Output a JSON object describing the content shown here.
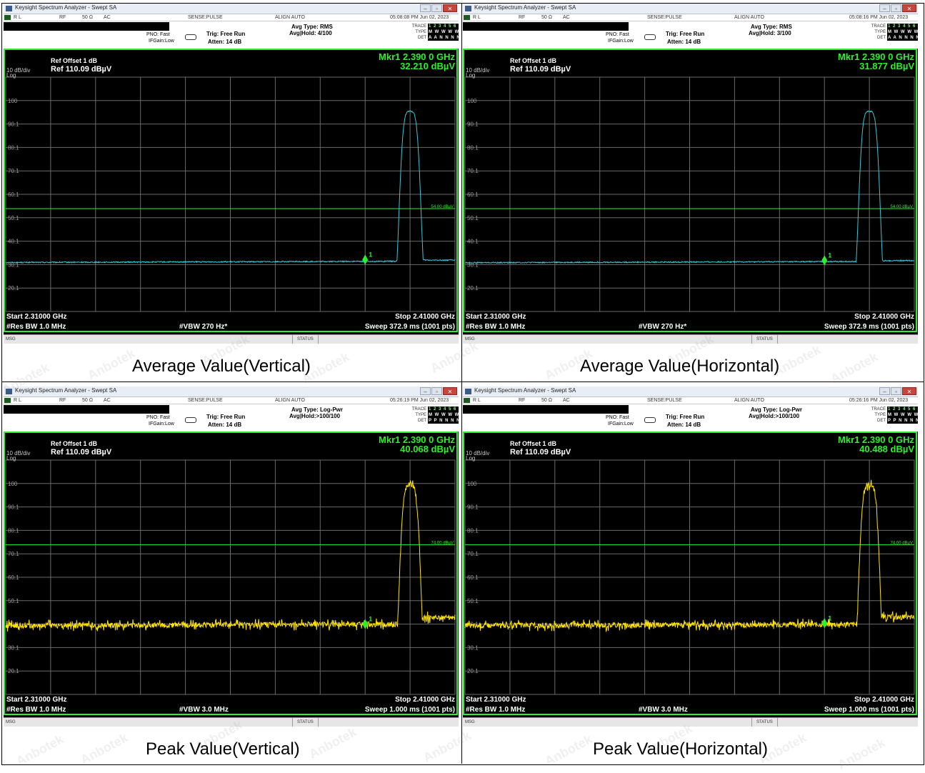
{
  "panels": [
    {
      "window_title": "Keysight Spectrum Analyzer - Swept SA",
      "rl": "R L",
      "rf": "RF",
      "impedance": "50 Ω",
      "coupling": "AC",
      "sense": "SENSE:PULSE",
      "align": "ALIGN AUTO",
      "datetime": "05:08:08 PM Jun 02, 2023",
      "pno": "PNO: Fast",
      "ifgain": "IFGain:Low",
      "trig": "Trig: Free Run",
      "atten": "Atten: 14 dB",
      "avg_type": "Avg Type: RMS",
      "avg_hold": "Avg|Hold: 4/100",
      "trace_label": "TRACE",
      "type_label": "TYPE",
      "det_label": "DET",
      "trace_vals": "1 2 3 4 5 6",
      "type_vals": "M W W W W W",
      "det_vals": "A A N N N N",
      "ref_offset": "Ref Offset 1 dB",
      "ref_level": "Ref 110.09 dBµV",
      "scale": "10 dB/div",
      "log": "Log",
      "marker_freq": "Mkr1 2.390 0 GHz",
      "marker_amp": "32.210 dBµV",
      "limit_label": "54.00 dBµV",
      "start": "Start 2.31000 GHz",
      "stop": "Stop 2.41000 GHz",
      "rbw": "#Res BW 1.0 MHz",
      "vbw": "#VBW 270 Hz*",
      "sweep": "Sweep  372.9 ms (1001 pts)",
      "msg": "MSG",
      "status": "STATUS",
      "caption": "Average Value(Vertical)"
    },
    {
      "window_title": "Keysight Spectrum Analyzer - Swept SA",
      "rl": "R L",
      "rf": "RF",
      "impedance": "50 Ω",
      "coupling": "AC",
      "sense": "SENSE:PULSE",
      "align": "ALIGN AUTO",
      "datetime": "05:08:16 PM Jun 02, 2023",
      "pno": "PNO: Fast",
      "ifgain": "IFGain:Low",
      "trig": "Trig: Free Run",
      "atten": "Atten: 14 dB",
      "avg_type": "Avg Type: RMS",
      "avg_hold": "Avg|Hold: 3/100",
      "trace_label": "TRACE",
      "type_label": "TYPE",
      "det_label": "DET",
      "trace_vals": "1 2 3 4 5 6",
      "type_vals": "M W W W W W",
      "det_vals": "A A N N N N",
      "ref_offset": "Ref Offset 1 dB",
      "ref_level": "Ref 110.09 dBµV",
      "scale": "10 dB/div",
      "log": "Log",
      "marker_freq": "Mkr1 2.390 0 GHz",
      "marker_amp": "31.877 dBµV",
      "limit_label": "54.00 dBµV",
      "start": "Start 2.31000 GHz",
      "stop": "Stop 2.41000 GHz",
      "rbw": "#Res BW 1.0 MHz",
      "vbw": "#VBW 270 Hz*",
      "sweep": "Sweep  372.9 ms (1001 pts)",
      "msg": "MSG",
      "status": "STATUS",
      "caption": "Average Value(Horizontal)"
    },
    {
      "window_title": "Keysight Spectrum Analyzer - Swept SA",
      "rl": "R L",
      "rf": "RF",
      "impedance": "50 Ω",
      "coupling": "AC",
      "sense": "SENSE:PULSE",
      "align": "ALIGN AUTO",
      "datetime": "05:26:19 PM Jun 02, 2023",
      "pno": "PNO: Fast",
      "ifgain": "IFGain:Low",
      "trig": "Trig: Free Run",
      "atten": "Atten: 14 dB",
      "avg_type": "Avg Type: Log-Pwr",
      "avg_hold": "Avg|Hold:>100/100",
      "trace_label": "TRACE",
      "type_label": "TYPE",
      "det_label": "DET",
      "trace_vals": "1 2 3 4 5 6",
      "type_vals": "M W W W W W",
      "det_vals": "P P N N N N",
      "ref_offset": "Ref Offset 1 dB",
      "ref_level": "Ref 110.09 dBµV",
      "scale": "10 dB/div",
      "log": "Log",
      "marker_freq": "Mkr1 2.390 0 GHz",
      "marker_amp": "40.068 dBµV",
      "limit_label": "74.00 dBµV",
      "start": "Start 2.31000 GHz",
      "stop": "Stop 2.41000 GHz",
      "rbw": "#Res BW 1.0 MHz",
      "vbw": "#VBW 3.0 MHz",
      "sweep": "Sweep  1.000 ms (1001 pts)",
      "msg": "MSG",
      "status": "STATUS",
      "caption": "Peak Value(Vertical)"
    },
    {
      "window_title": "Keysight Spectrum Analyzer - Swept SA",
      "rl": "R L",
      "rf": "RF",
      "impedance": "50 Ω",
      "coupling": "AC",
      "sense": "SENSE:PULSE",
      "align": "ALIGN AUTO",
      "datetime": "05:26:16 PM Jun 02, 2023",
      "pno": "PNO: Fast",
      "ifgain": "IFGain:Low",
      "trig": "Trig: Free Run",
      "atten": "Atten: 14 dB",
      "avg_type": "Avg Type: Log-Pwr",
      "avg_hold": "Avg|Hold:>100/100",
      "trace_label": "TRACE",
      "type_label": "TYPE",
      "det_label": "DET",
      "trace_vals": "1 2 3 4 5 6",
      "type_vals": "M W W W W W",
      "det_vals": "P P N N N N",
      "ref_offset": "Ref Offset 1 dB",
      "ref_level": "Ref 110.09 dBµV",
      "scale": "10 dB/div",
      "log": "Log",
      "marker_freq": "Mkr1 2.390 0 GHz",
      "marker_amp": "40.488 dBµV",
      "limit_label": "74.00 dBµV",
      "start": "Start 2.31000 GHz",
      "stop": "Stop 2.41000 GHz",
      "rbw": "#Res BW 1.0 MHz",
      "vbw": "#VBW 3.0 MHz",
      "sweep": "Sweep  1.000 ms (1001 pts)",
      "msg": "MSG",
      "status": "STATUS",
      "caption": "Peak Value(Horizontal)"
    }
  ],
  "watermark": "Anbotek",
  "colors": {
    "avg_trace": "#34c8d8",
    "peak_trace": "#ffe400",
    "marker": "#2cf02c",
    "graticule": "#6a6a6a",
    "limit": "#2cf02c"
  },
  "chart_data": [
    {
      "type": "line",
      "title": "Average Value(Vertical)",
      "xlabel": "",
      "ylabel": "",
      "xlim": [
        2.31,
        2.41
      ],
      "ylim": [
        10.09,
        110.09
      ],
      "yticks": [
        100,
        90.1,
        80.1,
        70.1,
        60.1,
        50.1,
        40.1,
        30.1,
        20.1
      ],
      "ytick_labels": [
        "100",
        "90.1",
        "80.1",
        "70.1",
        "60.1",
        "50.1",
        "40.1",
        "30.1",
        "20.1"
      ],
      "series": [
        {
          "color": "avg",
          "baseline": 31,
          "noise": 0.25,
          "peak_center": 2.4,
          "peak_level": 95.5,
          "peak_halfwidth": 0.0016,
          "step_at": 2.4025,
          "after_step": 32
        }
      ],
      "limit_line": 54.0,
      "marker": {
        "x": 2.39,
        "y": 32.21,
        "label": "1"
      }
    },
    {
      "type": "line",
      "title": "Average Value(Horizontal)",
      "xlabel": "",
      "ylabel": "",
      "xlim": [
        2.31,
        2.41
      ],
      "ylim": [
        10.09,
        110.09
      ],
      "yticks": [
        100,
        90.1,
        80.1,
        70.1,
        60.1,
        50.1,
        40.1,
        30.1,
        20.1
      ],
      "ytick_labels": [
        "100",
        "90.1",
        "80.1",
        "70.1",
        "60.1",
        "50.1",
        "40.1",
        "30.1",
        "20.1"
      ],
      "series": [
        {
          "color": "avg",
          "baseline": 30.9,
          "noise": 0.25,
          "peak_center": 2.4,
          "peak_level": 95.5,
          "peak_halfwidth": 0.0016,
          "step_at": 2.4025,
          "after_step": 31.8
        }
      ],
      "limit_line": 54.0,
      "marker": {
        "x": 2.39,
        "y": 31.877,
        "label": "1"
      }
    },
    {
      "type": "line",
      "title": "Peak Value(Vertical)",
      "xlabel": "",
      "ylabel": "",
      "xlim": [
        2.31,
        2.41
      ],
      "ylim": [
        10.09,
        110.09
      ],
      "yticks": [
        100,
        90.1,
        80.1,
        70.1,
        60.1,
        50.1,
        40.1,
        30.1,
        20.1
      ],
      "ytick_labels": [
        "100",
        "90.1",
        "80.1",
        "70.1",
        "60.1",
        "50.1",
        "40.1",
        "30.1",
        "20.1"
      ],
      "series": [
        {
          "color": "peak",
          "baseline": 39.5,
          "noise": 1.6,
          "peak_center": 2.4,
          "peak_level": 99.5,
          "peak_halfwidth": 0.0016,
          "step_at": 2.4025,
          "after_step": 43
        }
      ],
      "limit_line": 74.0,
      "marker": {
        "x": 2.39,
        "y": 40.068,
        "label": "1"
      }
    },
    {
      "type": "line",
      "title": "Peak Value(Horizontal)",
      "xlabel": "",
      "ylabel": "",
      "xlim": [
        2.31,
        2.41
      ],
      "ylim": [
        10.09,
        110.09
      ],
      "yticks": [
        100,
        90.1,
        80.1,
        70.1,
        60.1,
        50.1,
        40.1,
        30.1,
        20.1
      ],
      "ytick_labels": [
        "100",
        "90.1",
        "80.1",
        "70.1",
        "60.1",
        "50.1",
        "40.1",
        "30.1",
        "20.1"
      ],
      "series": [
        {
          "color": "peak",
          "baseline": 39.5,
          "noise": 1.6,
          "peak_center": 2.4,
          "peak_level": 99.5,
          "peak_halfwidth": 0.0016,
          "step_at": 2.4025,
          "after_step": 43
        }
      ],
      "limit_line": 74.0,
      "marker": {
        "x": 2.39,
        "y": 40.488,
        "label": "1"
      }
    }
  ]
}
